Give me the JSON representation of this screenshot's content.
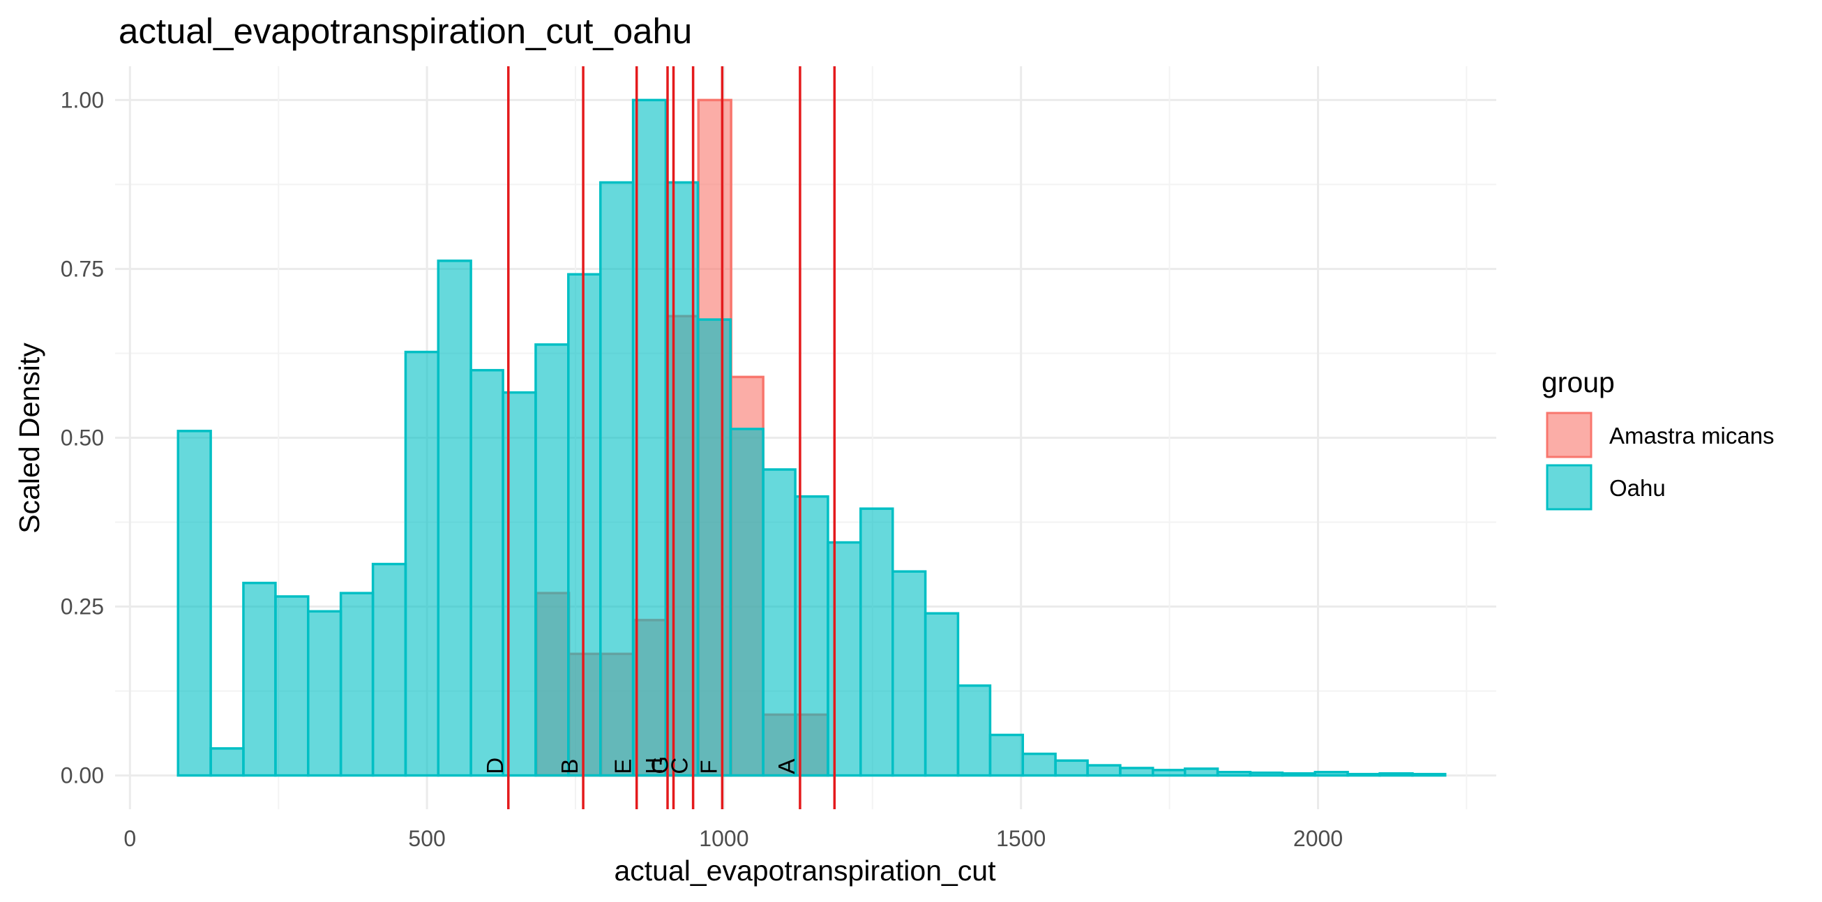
{
  "chart_data": {
    "type": "bar",
    "title": "actual_evapotranspiration_cut_oahu",
    "xlabel": "actual_evapotranspiration_cut",
    "ylabel": "Scaled Density",
    "xlim": [
      -25,
      2300
    ],
    "ylim": [
      -0.05,
      1.05
    ],
    "x_ticks": [
      0,
      500,
      1000,
      1500,
      2000
    ],
    "x_tick_labels": [
      "0",
      "500",
      "1000",
      "1500",
      "2000"
    ],
    "y_ticks": [
      0,
      0.25,
      0.5,
      0.75,
      1.0
    ],
    "y_tick_labels": [
      "0.00",
      "0.25",
      "0.50",
      "0.75",
      "1.00"
    ],
    "grid": true,
    "bin_width": 54.6,
    "series": [
      {
        "name": "Amastra micans",
        "color": "#F8766D",
        "bins": [
          {
            "x0": 684,
            "x1": 739,
            "y": 0.27
          },
          {
            "x0": 739,
            "x1": 793,
            "y": 0.18
          },
          {
            "x0": 793,
            "x1": 848,
            "y": 0.18
          },
          {
            "x0": 848,
            "x1": 902,
            "y": 0.23
          },
          {
            "x0": 902,
            "x1": 957,
            "y": 0.68
          },
          {
            "x0": 957,
            "x1": 1012,
            "y": 1.0
          },
          {
            "x0": 1012,
            "x1": 1066,
            "y": 0.59
          },
          {
            "x0": 1066,
            "x1": 1121,
            "y": 0.09
          },
          {
            "x0": 1121,
            "x1": 1175,
            "y": 0.09
          }
        ]
      },
      {
        "name": "Oahu",
        "color": "#00BFC4",
        "bins": [
          {
            "x0": 81,
            "x1": 136,
            "y": 0.51
          },
          {
            "x0": 136,
            "x1": 191,
            "y": 0.04
          },
          {
            "x0": 191,
            "x1": 245,
            "y": 0.285
          },
          {
            "x0": 245,
            "x1": 300,
            "y": 0.265
          },
          {
            "x0": 300,
            "x1": 355,
            "y": 0.243
          },
          {
            "x0": 355,
            "x1": 409,
            "y": 0.27
          },
          {
            "x0": 409,
            "x1": 464,
            "y": 0.313
          },
          {
            "x0": 464,
            "x1": 519,
            "y": 0.627
          },
          {
            "x0": 519,
            "x1": 574,
            "y": 0.762
          },
          {
            "x0": 574,
            "x1": 628,
            "y": 0.6
          },
          {
            "x0": 628,
            "x1": 683,
            "y": 0.567
          },
          {
            "x0": 683,
            "x1": 738,
            "y": 0.638
          },
          {
            "x0": 738,
            "x1": 792,
            "y": 0.742
          },
          {
            "x0": 792,
            "x1": 847,
            "y": 0.878
          },
          {
            "x0": 847,
            "x1": 902,
            "y": 1.0
          },
          {
            "x0": 902,
            "x1": 956,
            "y": 0.878
          },
          {
            "x0": 956,
            "x1": 1011,
            "y": 0.675
          },
          {
            "x0": 1011,
            "x1": 1066,
            "y": 0.513
          },
          {
            "x0": 1066,
            "x1": 1120,
            "y": 0.453
          },
          {
            "x0": 1120,
            "x1": 1175,
            "y": 0.413
          },
          {
            "x0": 1175,
            "x1": 1230,
            "y": 0.345
          },
          {
            "x0": 1230,
            "x1": 1284,
            "y": 0.395
          },
          {
            "x0": 1284,
            "x1": 1339,
            "y": 0.302
          },
          {
            "x0": 1339,
            "x1": 1394,
            "y": 0.24
          },
          {
            "x0": 1394,
            "x1": 1448,
            "y": 0.133
          },
          {
            "x0": 1448,
            "x1": 1503,
            "y": 0.06
          },
          {
            "x0": 1503,
            "x1": 1558,
            "y": 0.032
          },
          {
            "x0": 1558,
            "x1": 1612,
            "y": 0.022
          },
          {
            "x0": 1612,
            "x1": 1667,
            "y": 0.015
          },
          {
            "x0": 1667,
            "x1": 1722,
            "y": 0.011
          },
          {
            "x0": 1722,
            "x1": 1776,
            "y": 0.008
          },
          {
            "x0": 1776,
            "x1": 1831,
            "y": 0.01
          },
          {
            "x0": 1831,
            "x1": 1886,
            "y": 0.005
          },
          {
            "x0": 1886,
            "x1": 1940,
            "y": 0.004
          },
          {
            "x0": 1940,
            "x1": 1995,
            "y": 0.003
          },
          {
            "x0": 1995,
            "x1": 2050,
            "y": 0.005
          },
          {
            "x0": 2050,
            "x1": 2104,
            "y": 0.002
          },
          {
            "x0": 2104,
            "x1": 2159,
            "y": 0.003
          },
          {
            "x0": 2159,
            "x1": 2214,
            "y": 0.002
          }
        ]
      }
    ],
    "vlines": [
      {
        "label": "D",
        "x": 637
      },
      {
        "label": "B",
        "x": 763
      },
      {
        "label": "E",
        "x": 853
      },
      {
        "label": "H",
        "x": 905
      },
      {
        "label": "G",
        "x": 915
      },
      {
        "label": "C",
        "x": 948
      },
      {
        "label": "F",
        "x": 997
      },
      {
        "label": "A",
        "x": 1128
      },
      {
        "label": "",
        "x": 1186
      }
    ],
    "vline_color": "#E41A1C",
    "legend": {
      "title": "group",
      "position": "right",
      "entries": [
        {
          "name": "Amastra micans",
          "color": "#F8766D"
        },
        {
          "name": "Oahu",
          "color": "#00BFC4"
        }
      ]
    }
  }
}
